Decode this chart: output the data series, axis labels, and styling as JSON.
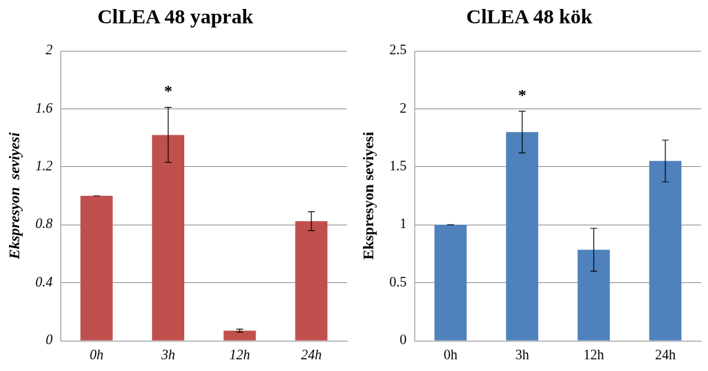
{
  "chart_data": [
    {
      "type": "bar",
      "title": "ClLEA 48 yaprak",
      "ylabel": "Ekspresyon  seviyesi",
      "categories": [
        "0h",
        "3h",
        "12h",
        "24h"
      ],
      "values": [
        1.0,
        1.42,
        0.07,
        0.825
      ],
      "errors": [
        0,
        0.19,
        0.01,
        0.065
      ],
      "color": "#c0504d",
      "ylim": [
        0,
        2
      ],
      "yticks": [
        0,
        0.4,
        0.8,
        1.2,
        1.6,
        2
      ],
      "grid": "y",
      "legend": false,
      "annotations": [
        "*"
      ]
    },
    {
      "type": "bar",
      "title": "ClLEA 48 kök",
      "ylabel": "Ekspresyon seviyesi",
      "categories": [
        "0h",
        "3h",
        "12h",
        "24h"
      ],
      "values": [
        1.0,
        1.8,
        0.785,
        1.55
      ],
      "errors": [
        0,
        0.18,
        0.185,
        0.18
      ],
      "color": "#4f81bd",
      "ylim": [
        0,
        2.5
      ],
      "yticks": [
        0,
        0.5,
        1,
        1.5,
        2,
        2.5
      ],
      "grid": "y",
      "legend": false,
      "annotations": [
        "*"
      ]
    }
  ]
}
